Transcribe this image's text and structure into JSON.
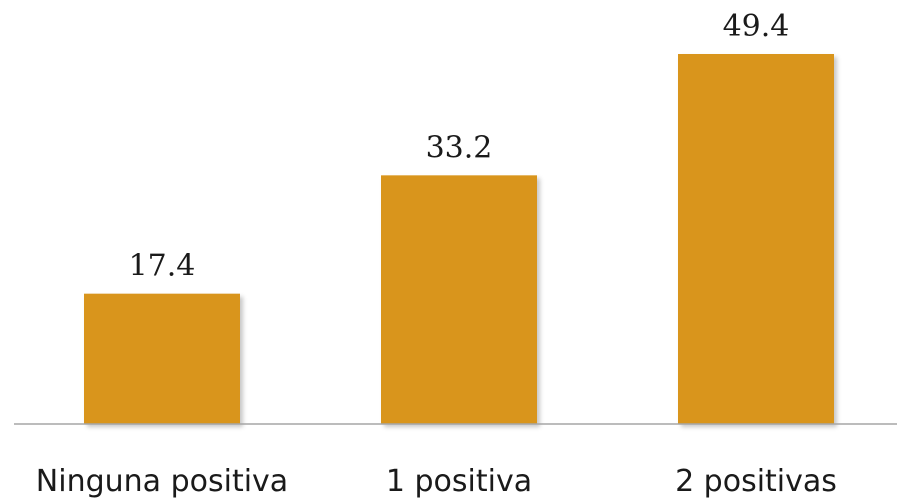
{
  "chart_data": {
    "type": "bar",
    "categories": [
      "Ninguna positiva",
      "1 positiva",
      "2 positivas"
    ],
    "values": [
      17.4,
      33.2,
      49.4
    ],
    "data_labels": [
      "17.4",
      "33.2",
      "49.4"
    ],
    "title": "",
    "xlabel": "",
    "ylabel": "",
    "ylim": [
      0,
      50
    ],
    "grid": false,
    "legend": "none",
    "bar_color": "#D9951C",
    "axis_color": "#a6a6a6"
  }
}
